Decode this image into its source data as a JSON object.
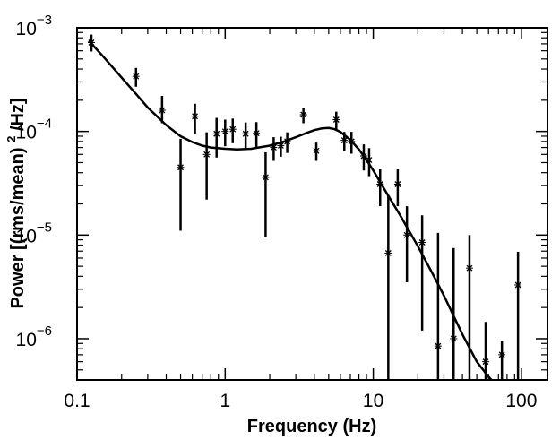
{
  "chart_data": {
    "type": "scatter",
    "xlabel": "Frequency (Hz)",
    "ylabel_parts": [
      "Power [(rms/mean)",
      "2",
      "/Hz]"
    ],
    "x_scale": "log",
    "y_scale": "log",
    "xlim": [
      0.1,
      150
    ],
    "ylim": [
      4e-07,
      0.001
    ],
    "grid": false,
    "colors": {
      "axes": "#000000",
      "data": "#000000",
      "model": "#000000"
    },
    "x_ticks": [
      {
        "value": 0.1,
        "label": "0.1"
      },
      {
        "value": 1,
        "label": "1"
      },
      {
        "value": 10,
        "label": "10"
      },
      {
        "value": 100,
        "label": "100"
      }
    ],
    "y_ticks": [
      {
        "value": 1e-06,
        "base": "10",
        "exp": "−6"
      },
      {
        "value": 1e-05,
        "base": "10",
        "exp": "−5"
      },
      {
        "value": 0.0001,
        "base": "10",
        "exp": "−4"
      },
      {
        "value": 0.001,
        "base": "10",
        "exp": "−3"
      }
    ],
    "series": [
      {
        "marker": "cross",
        "points": [
          {
            "x": 0.125,
            "y": 0.00072,
            "y_low": 0.00059,
            "y_high": 0.00086
          },
          {
            "x": 0.25,
            "y": 0.00034,
            "y_low": 0.00027,
            "y_high": 0.00041
          },
          {
            "x": 0.375,
            "y": 0.00016,
            "y_low": 0.00012,
            "y_high": 0.00022
          },
          {
            "x": 0.5,
            "y": 4.5e-05,
            "y_low": 1.1e-05,
            "y_high": 8.5e-05
          },
          {
            "x": 0.625,
            "y": 0.00014,
            "y_low": 9.5e-05,
            "y_high": 0.000185
          },
          {
            "x": 0.75,
            "y": 6e-05,
            "y_low": 2.2e-05,
            "y_high": 9.8e-05
          },
          {
            "x": 0.875,
            "y": 9.5e-05,
            "y_low": 5.6e-05,
            "y_high": 0.000135
          },
          {
            "x": 1.0,
            "y": 0.0001,
            "y_low": 7.2e-05,
            "y_high": 0.00013
          },
          {
            "x": 1.125,
            "y": 0.000105,
            "y_low": 7.7e-05,
            "y_high": 0.000133
          },
          {
            "x": 1.375,
            "y": 9.5e-05,
            "y_low": 6.8e-05,
            "y_high": 0.000122
          },
          {
            "x": 1.625,
            "y": 9.6e-05,
            "y_low": 6.9e-05,
            "y_high": 0.000123
          },
          {
            "x": 1.875,
            "y": 3.6e-05,
            "y_low": 9.5e-06,
            "y_high": 6.3e-05
          },
          {
            "x": 2.125,
            "y": 7e-05,
            "y_low": 5.2e-05,
            "y_high": 8.8e-05
          },
          {
            "x": 2.375,
            "y": 7.3e-05,
            "y_low": 5.7e-05,
            "y_high": 8.9e-05
          },
          {
            "x": 2.625,
            "y": 8e-05,
            "y_low": 6.2e-05,
            "y_high": 9.8e-05
          },
          {
            "x": 3.375,
            "y": 0.000145,
            "y_low": 0.00012,
            "y_high": 0.00017
          },
          {
            "x": 4.125,
            "y": 6.5e-05,
            "y_low": 5.2e-05,
            "y_high": 7.8e-05
          },
          {
            "x": 5.625,
            "y": 0.00013,
            "y_low": 0.000105,
            "y_high": 0.000155
          },
          {
            "x": 6.375,
            "y": 8.2e-05,
            "y_low": 6.5e-05,
            "y_high": 9.9e-05
          },
          {
            "x": 7.125,
            "y": 8e-05,
            "y_low": 6.1e-05,
            "y_high": 9.9e-05
          },
          {
            "x": 8.625,
            "y": 5.8e-05,
            "y_low": 4.2e-05,
            "y_high": 7.5e-05
          },
          {
            "x": 9.375,
            "y": 5.3e-05,
            "y_low": 3.7e-05,
            "y_high": 6.9e-05
          },
          {
            "x": 11.125,
            "y": 3.1e-05,
            "y_low": 1.9e-05,
            "y_high": 4.3e-05
          },
          {
            "x": 12.625,
            "y": 6.7e-06,
            "y_low": 4e-07,
            "y_high": 2.4e-05
          },
          {
            "x": 14.625,
            "y": 3.1e-05,
            "y_low": 1.9e-05,
            "y_high": 4.3e-05
          },
          {
            "x": 16.875,
            "y": 1e-05,
            "y_low": 3.5e-06,
            "y_high": 1.9e-05
          },
          {
            "x": 21.375,
            "y": 8.5e-06,
            "y_low": 1.2e-06,
            "y_high": 1.55e-05
          },
          {
            "x": 27.375,
            "y": 8.5e-07,
            "y_low": 4e-07,
            "y_high": 1.05e-05
          },
          {
            "x": 34.875,
            "y": 1e-06,
            "y_low": 4e-07,
            "y_high": 7.5e-06
          },
          {
            "x": 44.625,
            "y": 4.8e-06,
            "y_low": 4e-07,
            "y_high": 1e-05
          },
          {
            "x": 57.375,
            "y": 6e-07,
            "y_low": 4e-07,
            "y_high": 1.45e-06
          },
          {
            "x": 73.875,
            "y": 7e-07,
            "y_low": 4e-07,
            "y_high": 9.5e-07
          },
          {
            "x": 94.875,
            "y": 3.3e-06,
            "y_low": 4e-07,
            "y_high": 6.9e-06
          }
        ]
      },
      {
        "type": "line",
        "points": [
          {
            "x": 0.12,
            "y": 0.00075
          },
          {
            "x": 0.15,
            "y": 0.00053
          },
          {
            "x": 0.2,
            "y": 0.00033
          },
          {
            "x": 0.25,
            "y": 0.00023
          },
          {
            "x": 0.3,
            "y": 0.00017
          },
          {
            "x": 0.4,
            "y": 0.000115
          },
          {
            "x": 0.5,
            "y": 9e-05
          },
          {
            "x": 0.6,
            "y": 7.9e-05
          },
          {
            "x": 0.7,
            "y": 7.3e-05
          },
          {
            "x": 0.8,
            "y": 7e-05
          },
          {
            "x": 1.0,
            "y": 6.8e-05
          },
          {
            "x": 1.2,
            "y": 6.7e-05
          },
          {
            "x": 1.5,
            "y": 6.8e-05
          },
          {
            "x": 2.0,
            "y": 7.3e-05
          },
          {
            "x": 2.5,
            "y": 8e-05
          },
          {
            "x": 3.0,
            "y": 8.8e-05
          },
          {
            "x": 3.5,
            "y": 9.6e-05
          },
          {
            "x": 4.0,
            "y": 0.000103
          },
          {
            "x": 4.5,
            "y": 0.000107
          },
          {
            "x": 5.0,
            "y": 0.000108
          },
          {
            "x": 5.5,
            "y": 0.000105
          },
          {
            "x": 6.0,
            "y": 9.9e-05
          },
          {
            "x": 7.0,
            "y": 8.3e-05
          },
          {
            "x": 8.0,
            "y": 6.7e-05
          },
          {
            "x": 9.0,
            "y": 5.3e-05
          },
          {
            "x": 10.0,
            "y": 4.2e-05
          },
          {
            "x": 12.0,
            "y": 2.7e-05
          },
          {
            "x": 15.0,
            "y": 1.6e-05
          },
          {
            "x": 20.0,
            "y": 7.8e-06
          },
          {
            "x": 25.0,
            "y": 4.3e-06
          },
          {
            "x": 30.0,
            "y": 2.6e-06
          },
          {
            "x": 40.0,
            "y": 1.1e-06
          },
          {
            "x": 50.0,
            "y": 6e-07
          },
          {
            "x": 60.0,
            "y": 4.3e-07
          },
          {
            "x": 65.0,
            "y": 3.8e-07
          }
        ]
      }
    ]
  }
}
